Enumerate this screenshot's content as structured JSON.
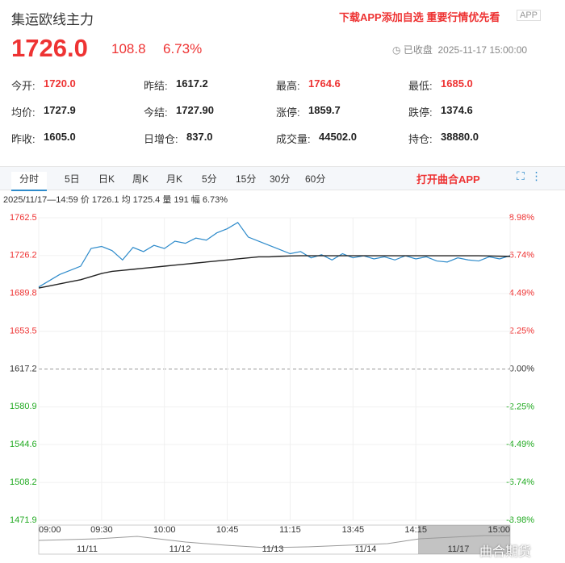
{
  "header": {
    "title": "集运欧线主力",
    "price": "1726.0",
    "change": "108.8",
    "change_pct": "6.73%",
    "promo": "下载APP添加自选 重要行情优先看",
    "badge": "APP",
    "status": "已收盘",
    "time": "2025-11-17 15:00:00"
  },
  "stats": [
    [
      "今开:",
      "1720.0"
    ],
    [
      "昨结:",
      "1617.2"
    ],
    [
      "最高:",
      "1764.6"
    ],
    [
      "最低:",
      "1685.0"
    ],
    [
      "均价:",
      "1727.9"
    ],
    [
      "今结:",
      "1727.90"
    ],
    [
      "涨停:",
      "1859.7"
    ],
    [
      "跌停:",
      "1374.6"
    ],
    [
      "昨收:",
      "1605.0"
    ],
    [
      "日增仓:",
      "837.0"
    ],
    [
      "成交量:",
      "44502.0"
    ],
    [
      "持仓:",
      "38880.0"
    ]
  ],
  "tabs": [
    "分时",
    "5日",
    "日K",
    "周K",
    "月K",
    "5分",
    "15分",
    "30分",
    "60分"
  ],
  "open_app": "打开曲合APP",
  "info": "2025/11/17—14:59 价 1726.1 均 1725.4 量 191 幅 6.73%",
  "navigator": {
    "dates": [
      "11/11",
      "11/12",
      "11/13",
      "11/14",
      "11/17"
    ]
  },
  "watermark": "曲合期货",
  "chart_data": {
    "type": "line",
    "categories": [
      "09:00",
      null,
      null,
      null,
      null,
      null,
      "09:30",
      null,
      null,
      null,
      null,
      null,
      "10:00",
      null,
      null,
      null,
      null,
      null,
      "10:45",
      null,
      null,
      null,
      null,
      null,
      "11:15",
      null,
      null,
      null,
      null,
      null,
      "13:45",
      null,
      null,
      null,
      null,
      null,
      "14:15",
      null,
      null,
      null,
      null,
      null,
      null,
      null,
      null,
      "15:00"
    ],
    "series": [
      {
        "name": "价",
        "color": "#2e8bcb",
        "values": [
          1696,
          1702,
          1708,
          1712,
          1716,
          1733,
          1735,
          1731,
          1722,
          1734,
          1730,
          1736,
          1733,
          1740,
          1738,
          1743,
          1741,
          1748,
          1752,
          1758,
          1744,
          1740,
          1736,
          1732,
          1728,
          1730,
          1724,
          1727,
          1722,
          1728,
          1724,
          1726,
          1723,
          1725,
          1722,
          1726,
          1723,
          1725,
          1721,
          1720,
          1724,
          1722,
          1721,
          1725,
          1723,
          1726.1
        ]
      },
      {
        "name": "均",
        "color": "#222222",
        "values": [
          1695,
          1697,
          1699,
          1701,
          1703,
          1706,
          1709,
          1711,
          1712,
          1713,
          1714,
          1715,
          1716,
          1717,
          1718,
          1719,
          1720,
          1721,
          1722,
          1723,
          1724,
          1725,
          1725,
          1725.5,
          1725.8,
          1726,
          1726,
          1726,
          1726,
          1726,
          1726,
          1726,
          1726,
          1726,
          1726,
          1726,
          1726,
          1726,
          1726,
          1726,
          1726,
          1726,
          1726,
          1725.8,
          1725.6,
          1725.4
        ]
      }
    ],
    "ylim": [
      1471.9,
      1762.5
    ],
    "yticks": [
      1762.5,
      1726.2,
      1689.8,
      1653.5,
      1617.2,
      1580.9,
      1544.6,
      1508.2,
      1471.9
    ],
    "y2lim": [
      -8.98,
      8.98
    ],
    "y2ticks": [
      {
        "value": 8.98,
        "label": "8.98%"
      },
      {
        "value": 6.74,
        "label": "6.74%"
      },
      {
        "value": 4.49,
        "label": "4.49%"
      },
      {
        "value": 2.25,
        "label": "2.25%"
      },
      {
        "value": 0,
        "label": "0.00%"
      },
      {
        "value": -2.25,
        "label": "-2.25%"
      },
      {
        "value": -4.49,
        "label": "-4.49%"
      },
      {
        "value": -6.74,
        "label": "-6.74%"
      },
      {
        "value": -8.98,
        "label": "-8.98%"
      }
    ],
    "grid": true
  }
}
